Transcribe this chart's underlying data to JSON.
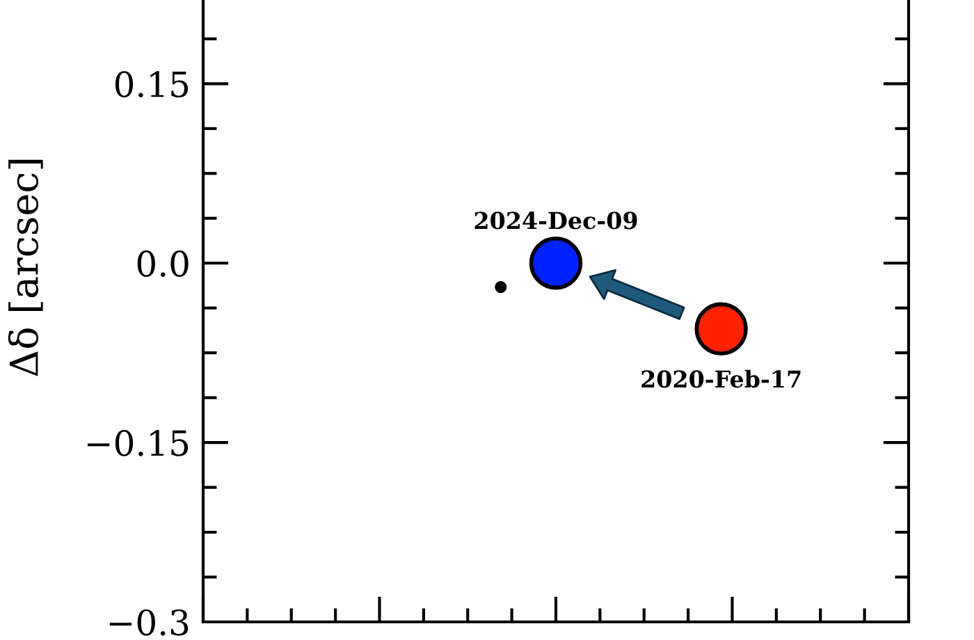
{
  "chart_data": {
    "type": "bubble",
    "ylabel": "Δδ [arcsec]",
    "marker": "circle",
    "tick_labels": "y",
    "categories": [
      null,
      null,
      null,
      null,
      null,
      null,
      null,
      null,
      null,
      null,
      null,
      null,
      null,
      null,
      null,
      null,
      null,
      null,
      null,
      null,
      null,
      null,
      null,
      null,
      null,
      null,
      null,
      null,
      null,
      null,
      null,
      null,
      null,
      null,
      null,
      null,
      null,
      null,
      null,
      null,
      null,
      null,
      null,
      null,
      null,
      null,
      null,
      null,
      null,
      null,
      null,
      null,
      null,
      null,
      null,
      null,
      null,
      null,
      null,
      null,
      null,
      null,
      null,
      null,
      null
    ],
    "series": [
      {
        "color": "#000000",
        "values": [
          null,
          null,
          null,
          null,
          null,
          null,
          null,
          null,
          null,
          null,
          null,
          null,
          null,
          null,
          null,
          null,
          null,
          null,
          null,
          null,
          null,
          null,
          null,
          null,
          null,
          null,
          null,
          -0.02,
          null,
          null,
          null,
          null,
          null,
          null,
          null,
          null,
          null,
          null,
          null,
          null,
          null,
          null,
          null,
          null,
          null,
          null,
          null,
          null,
          null,
          null,
          null,
          null,
          null,
          null,
          null,
          null,
          null,
          null,
          null,
          null,
          null,
          null,
          null,
          null,
          null
        ],
        "sizes": [
          null,
          null,
          null,
          null,
          null,
          null,
          null,
          null,
          null,
          null,
          null,
          null,
          null,
          null,
          null,
          null,
          null,
          null,
          null,
          null,
          null,
          null,
          null,
          null,
          null,
          null,
          null,
          0.05,
          null,
          null,
          null,
          null,
          null,
          null,
          null,
          null,
          null,
          null,
          null,
          null,
          null,
          null,
          null,
          null,
          null,
          null,
          null,
          null,
          null,
          null,
          null,
          null,
          null,
          null,
          null,
          null,
          null,
          null,
          null,
          null,
          null,
          null,
          null,
          null,
          null
        ]
      },
      {
        "name": "2020-Feb-17",
        "color": "#ff2200",
        "values": [
          null,
          null,
          null,
          null,
          null,
          null,
          null,
          null,
          null,
          null,
          null,
          null,
          null,
          null,
          null,
          null,
          null,
          null,
          null,
          null,
          null,
          null,
          null,
          null,
          null,
          null,
          null,
          null,
          null,
          null,
          null,
          null,
          null,
          null,
          null,
          null,
          null,
          null,
          null,
          null,
          null,
          null,
          null,
          null,
          null,
          null,
          null,
          -0.055,
          null,
          null,
          null,
          null,
          null,
          null,
          null,
          null,
          null,
          null,
          null,
          null,
          null,
          null,
          null,
          null,
          null
        ],
        "sizes": [
          null,
          null,
          null,
          null,
          null,
          null,
          null,
          null,
          null,
          null,
          null,
          null,
          null,
          null,
          null,
          null,
          null,
          null,
          null,
          null,
          null,
          null,
          null,
          null,
          null,
          null,
          null,
          null,
          null,
          null,
          null,
          null,
          null,
          null,
          null,
          null,
          null,
          null,
          null,
          null,
          null,
          null,
          null,
          null,
          null,
          null,
          null,
          1,
          null,
          null,
          null,
          null,
          null,
          null,
          null,
          null,
          null,
          null,
          null,
          null,
          null,
          null,
          null,
          null,
          null
        ]
      },
      {
        "name": "2024-Dec-09",
        "color": "#0022ff",
        "values": [
          null,
          null,
          null,
          null,
          null,
          null,
          null,
          null,
          null,
          null,
          null,
          null,
          null,
          null,
          null,
          null,
          null,
          null,
          null,
          null,
          null,
          null,
          null,
          null,
          null,
          null,
          null,
          null,
          null,
          null,
          null,
          null,
          0.0,
          null,
          null,
          null,
          null,
          null,
          null,
          null,
          null,
          null,
          null,
          null,
          null,
          null,
          null,
          null,
          null,
          null,
          null,
          null,
          null,
          null,
          null,
          null,
          null,
          null,
          null,
          null,
          null,
          null,
          null,
          null,
          null
        ],
        "sizes": [
          null,
          null,
          null,
          null,
          null,
          null,
          null,
          null,
          null,
          null,
          null,
          null,
          null,
          null,
          null,
          null,
          null,
          null,
          null,
          null,
          null,
          null,
          null,
          null,
          null,
          null,
          null,
          null,
          null,
          null,
          null,
          null,
          1,
          null,
          null,
          null,
          null,
          null,
          null,
          null,
          null,
          null,
          null,
          null,
          null,
          null,
          null,
          null,
          null,
          null,
          null,
          null,
          null,
          null,
          null,
          null,
          null,
          null,
          null,
          null,
          null,
          null,
          null,
          null,
          null
        ]
      }
    ],
    "ylim": [
      -0.3,
      0.22
    ],
    "yticks": [
      {
        "value": -0.3,
        "label": "−0.3"
      },
      {
        "value": -0.15,
        "label": "−0.15"
      },
      {
        "value": 0,
        "label": "0.0"
      },
      {
        "value": 0.15,
        "label": "0.15"
      }
    ]
  }
}
